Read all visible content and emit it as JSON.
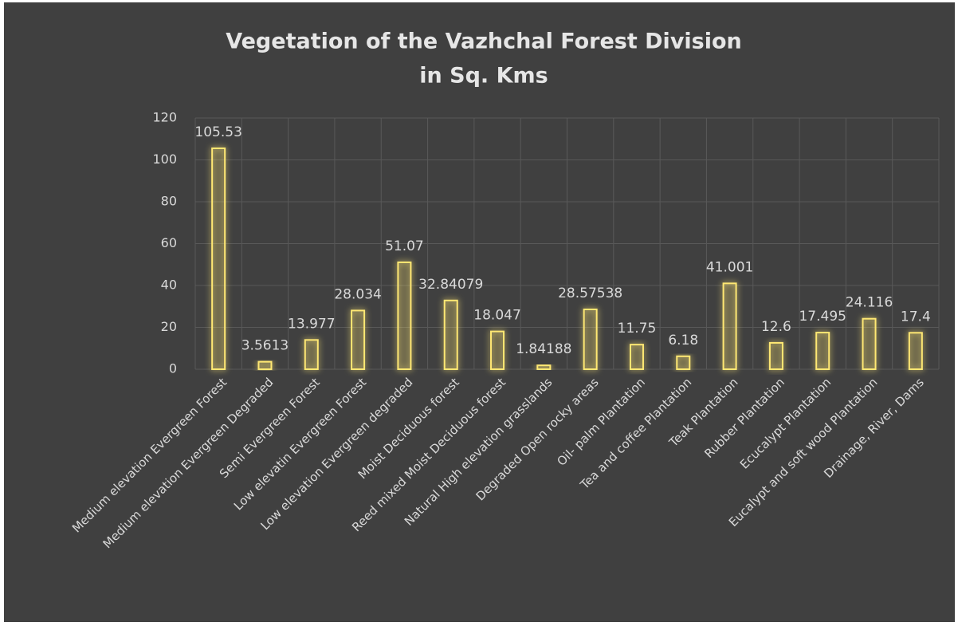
{
  "chart_data": {
    "type": "bar",
    "title": [
      "Vegetation of the Vazhchal Forest Division",
      "in Sq. Kms"
    ],
    "categories": [
      "Medium elevation Evergreen Forest",
      "Medium elevation Evergreen Degraded",
      "Semi Evergreen Forest",
      "Low elevatin Evergreen Forest",
      "Low elevation Evergreen  degraded",
      "Moist Deciduous forest",
      "Reed mixed Moist Deciduous forest",
      "Natural High elevation grasslands",
      "Degraded Open rocky areas",
      "Oil- palm Plantation",
      "Tea and coffee Plantation",
      "Teak Plantation",
      "Rubber Plantation",
      "Ecucalypt Plantation",
      "Eucalypt and soft wood Plantation",
      "Drainage, River, Dams"
    ],
    "values": [
      105.53,
      3.5613,
      13.977,
      28.034,
      51.07,
      32.84079,
      18.047,
      1.84188,
      28.57538,
      11.75,
      6.18,
      41.001,
      12.6,
      17.495,
      24.116,
      17.4
    ],
    "color": "#ffe873",
    "ylim": [
      0,
      120
    ],
    "yticks": [
      0,
      20,
      40,
      60,
      80,
      100,
      120
    ],
    "grid": true
  }
}
